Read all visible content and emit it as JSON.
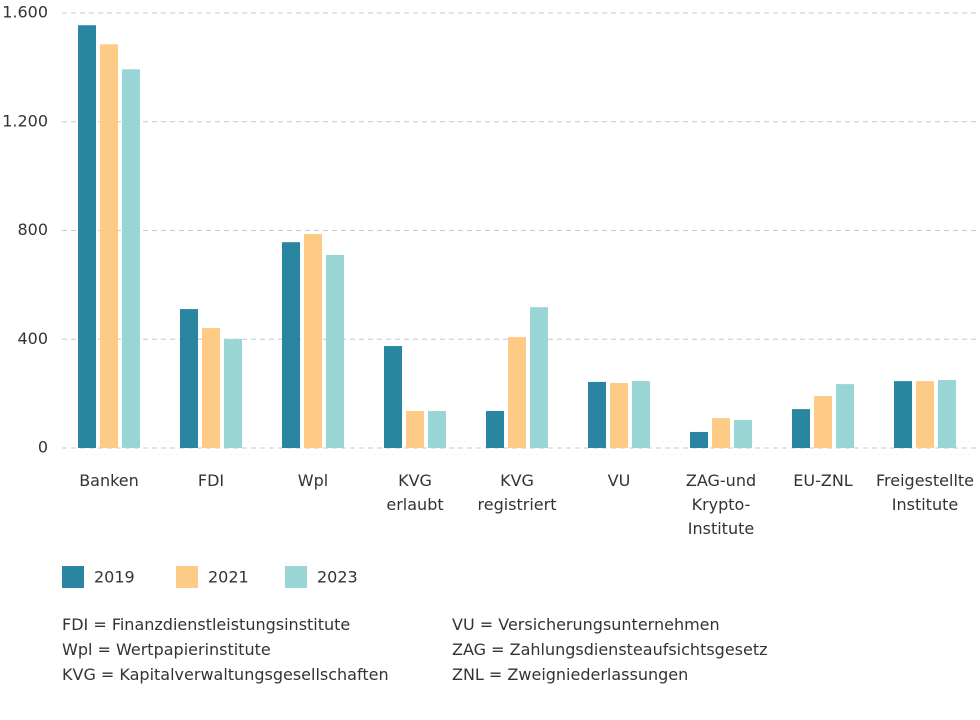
{
  "chart_data": {
    "type": "bar",
    "categories": [
      "Banken",
      "FDI",
      "Wpl",
      "KVG\nerlaubt",
      "KVG\nregistriert",
      "VU",
      "ZAG-und\nKrypto-\nInstitute",
      "EU-ZNL",
      "Freigestellte\nInstitute"
    ],
    "series": [
      {
        "name": "2019",
        "color": "#2a86a0",
        "values": [
          1555,
          511,
          757,
          375,
          136,
          243,
          59,
          143,
          246
        ]
      },
      {
        "name": "2021",
        "color": "#fdcb85",
        "values": [
          1485,
          441,
          787,
          136,
          408,
          239,
          110,
          191,
          246
        ]
      },
      {
        "name": "2023",
        "color": "#99d5d5",
        "values": [
          1393,
          401,
          710,
          136,
          518,
          246,
          103,
          235,
          250
        ]
      }
    ],
    "ylim": [
      0,
      1600
    ],
    "yticks": [
      0,
      400,
      800,
      {
        "value": 1200,
        "label": "1.200"
      },
      {
        "value": 1600,
        "label": "1.600"
      }
    ],
    "grid": true
  },
  "notes": [
    [
      "FDI = Finanzdienstleistungsinstitute",
      "Wpl = Wertpapierinstitute",
      "KVG = Kapitalverwaltungsgesellschaften"
    ],
    [
      "VU = Versicherungsunternehmen",
      "ZAG = Zahlungsdiensteaufsichtsgesetz",
      "ZNL = Zweigniederlassungen"
    ]
  ]
}
